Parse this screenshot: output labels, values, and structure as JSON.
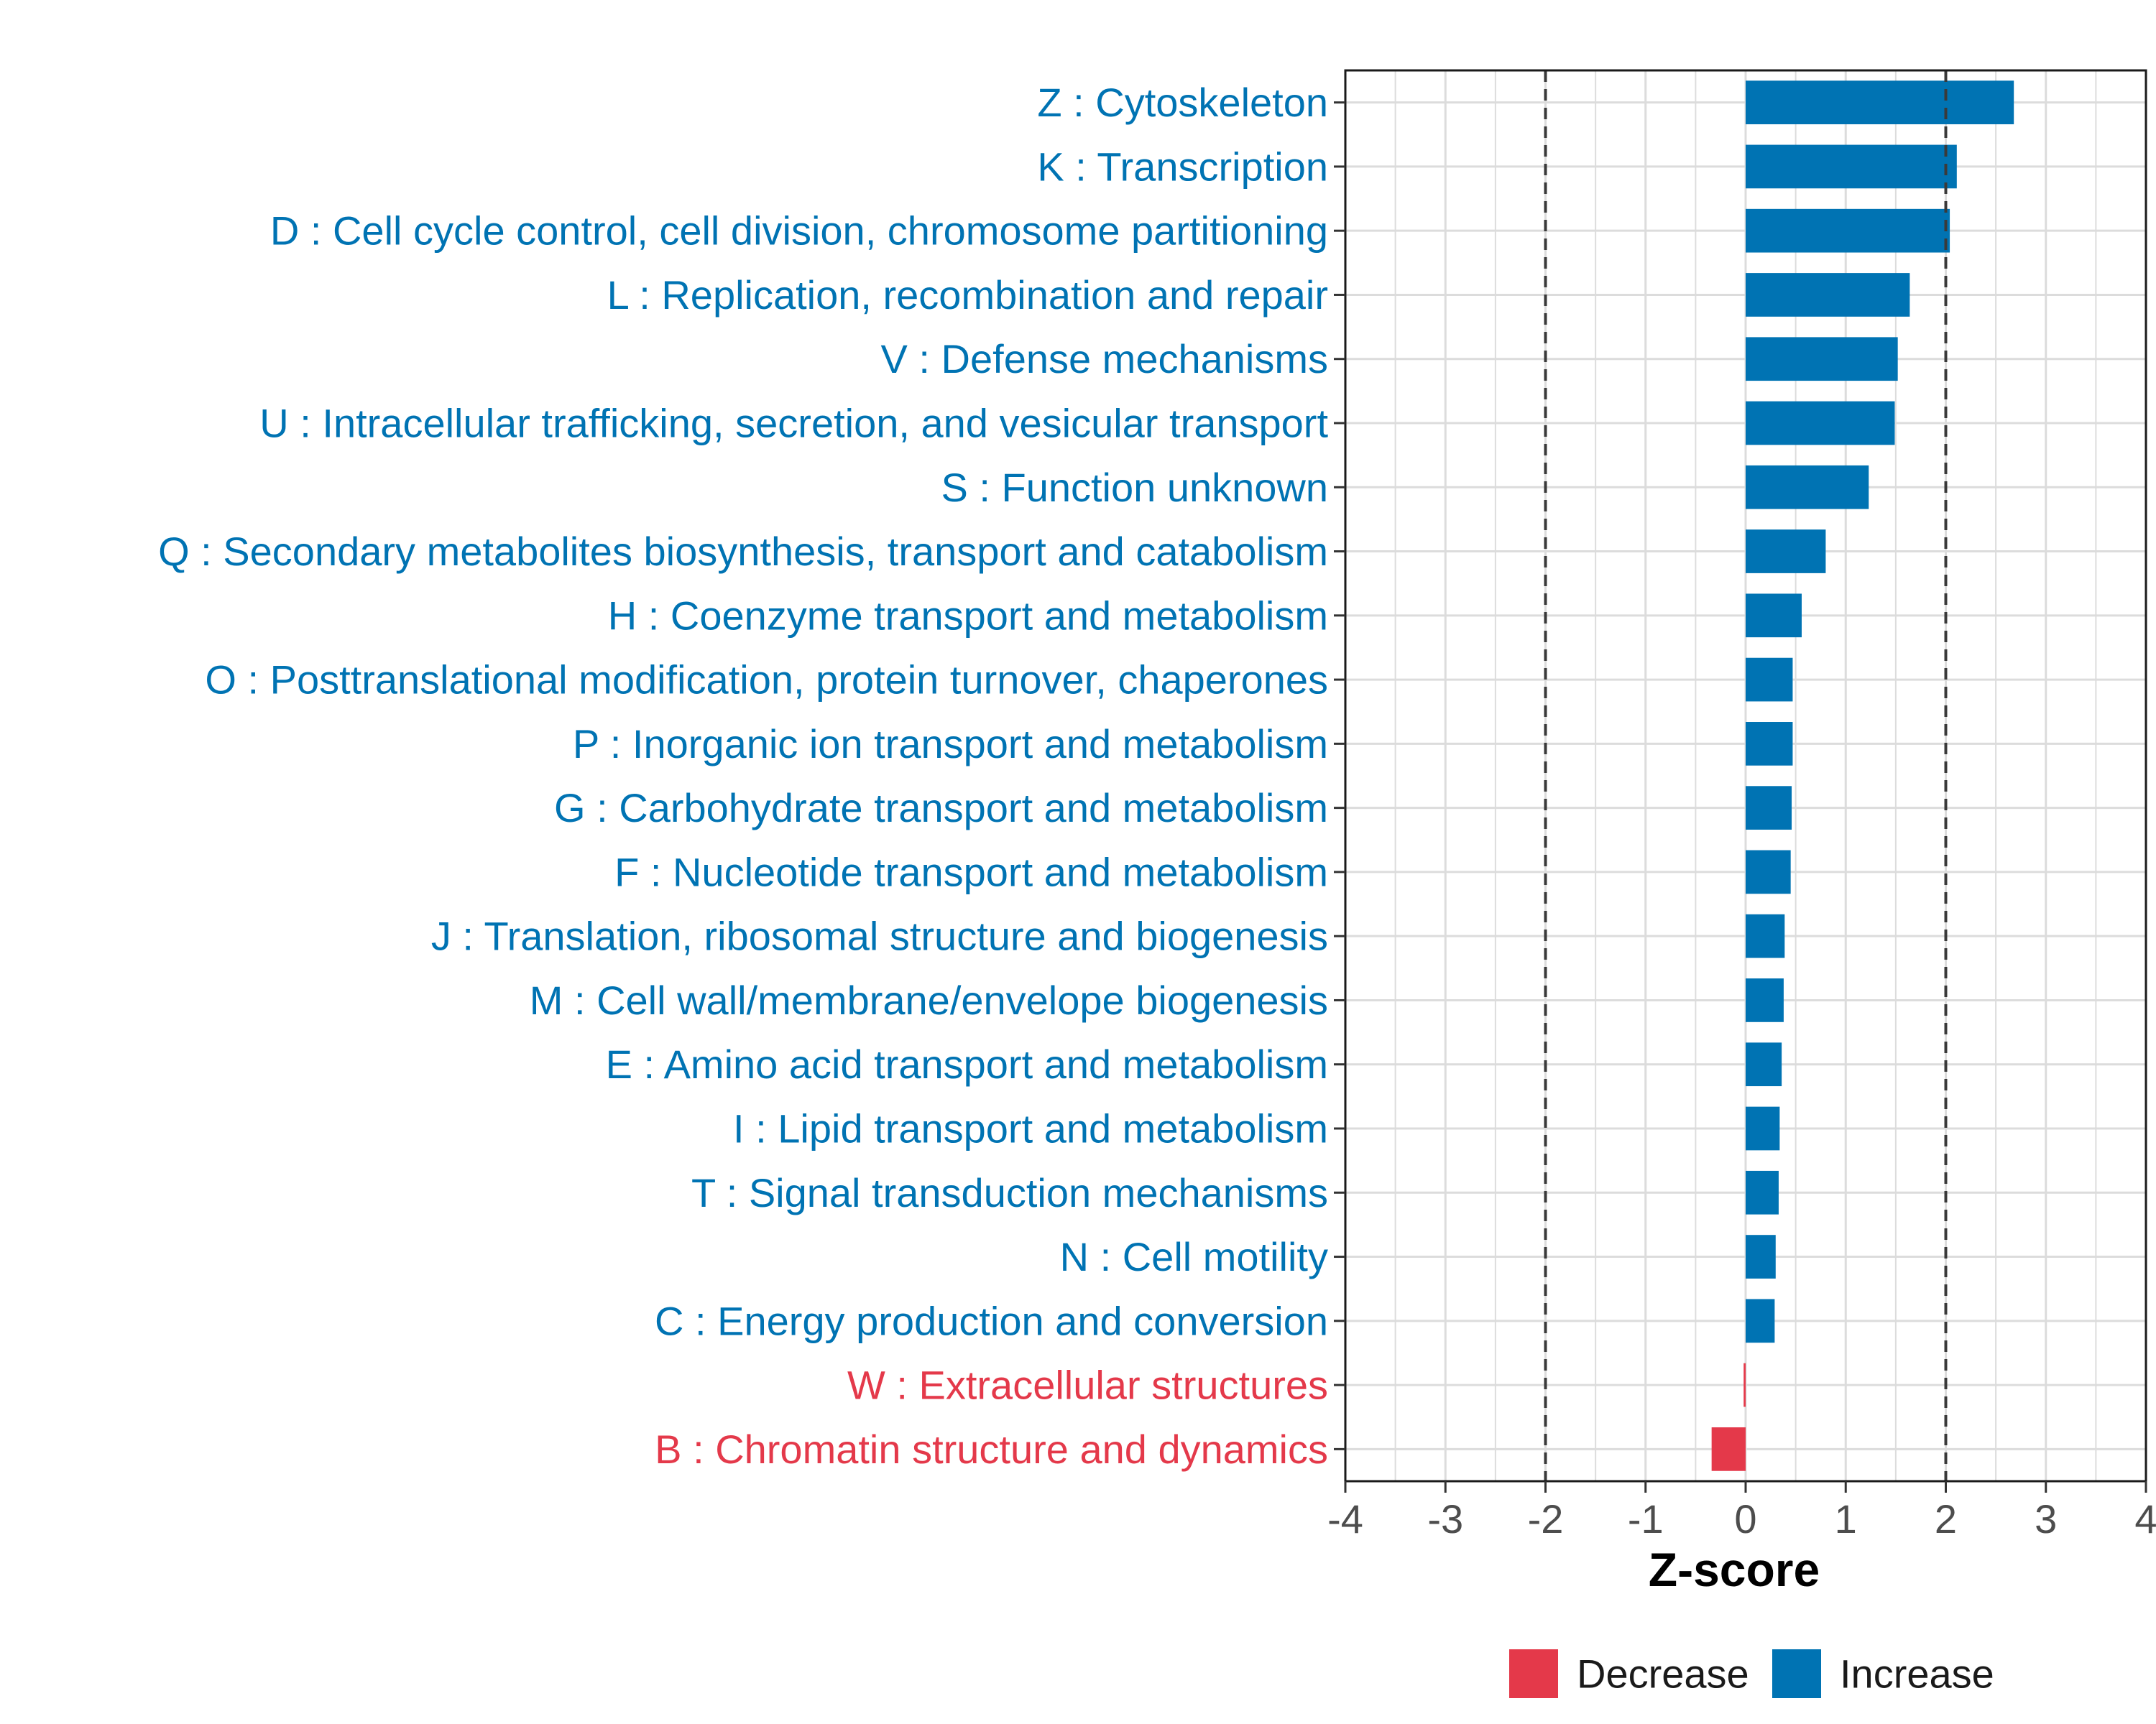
{
  "chart_data": {
    "type": "bar",
    "orientation": "horizontal",
    "xlabel": "Z-score",
    "xlim": [
      -4,
      4
    ],
    "xticks": [
      -4,
      -3,
      -2,
      -1,
      0,
      1,
      2,
      3,
      4
    ],
    "threshold_lines": [
      -2,
      2
    ],
    "grid": true,
    "colors": {
      "Increase": "#0073b3",
      "Decrease": "#e4394a"
    },
    "legend": {
      "placement": "bottom",
      "entries": [
        {
          "label": "Decrease",
          "color": "#e4394a"
        },
        {
          "label": "Increase",
          "color": "#0073b3"
        }
      ]
    },
    "categories": [
      {
        "label": "Z : Cytoskeleton",
        "value": 2.68,
        "direction": "Increase"
      },
      {
        "label": "K : Transcription",
        "value": 2.11,
        "direction": "Increase"
      },
      {
        "label": "D : Cell cycle control, cell division, chromosome partitioning",
        "value": 2.04,
        "direction": "Increase"
      },
      {
        "label": "L : Replication, recombination and repair",
        "value": 1.64,
        "direction": "Increase"
      },
      {
        "label": "V : Defense mechanisms",
        "value": 1.52,
        "direction": "Increase"
      },
      {
        "label": "U : Intracellular trafficking, secretion, and vesicular transport",
        "value": 1.49,
        "direction": "Increase"
      },
      {
        "label": "S : Function unknown",
        "value": 1.23,
        "direction": "Increase"
      },
      {
        "label": "Q : Secondary metabolites biosynthesis, transport and catabolism",
        "value": 0.8,
        "direction": "Increase"
      },
      {
        "label": "H : Coenzyme transport and metabolism",
        "value": 0.56,
        "direction": "Increase"
      },
      {
        "label": "O : Posttranslational modification, protein turnover, chaperones",
        "value": 0.47,
        "direction": "Increase"
      },
      {
        "label": "P : Inorganic ion transport and metabolism",
        "value": 0.47,
        "direction": "Increase"
      },
      {
        "label": "G : Carbohydrate transport and metabolism",
        "value": 0.46,
        "direction": "Increase"
      },
      {
        "label": "F : Nucleotide transport and metabolism",
        "value": 0.45,
        "direction": "Increase"
      },
      {
        "label": "J : Translation, ribosomal structure and biogenesis",
        "value": 0.39,
        "direction": "Increase"
      },
      {
        "label": "M : Cell wall/membrane/envelope biogenesis",
        "value": 0.38,
        "direction": "Increase"
      },
      {
        "label": "E : Amino acid transport and metabolism",
        "value": 0.36,
        "direction": "Increase"
      },
      {
        "label": "I : Lipid transport and metabolism",
        "value": 0.34,
        "direction": "Increase"
      },
      {
        "label": "T : Signal transduction mechanisms",
        "value": 0.33,
        "direction": "Increase"
      },
      {
        "label": "N : Cell motility",
        "value": 0.3,
        "direction": "Increase"
      },
      {
        "label": "C : Energy production and conversion",
        "value": 0.29,
        "direction": "Increase"
      },
      {
        "label": "W : Extracellular structures",
        "value": -0.02,
        "direction": "Decrease"
      },
      {
        "label": "B : Chromatin structure and dynamics",
        "value": -0.34,
        "direction": "Decrease"
      }
    ]
  }
}
